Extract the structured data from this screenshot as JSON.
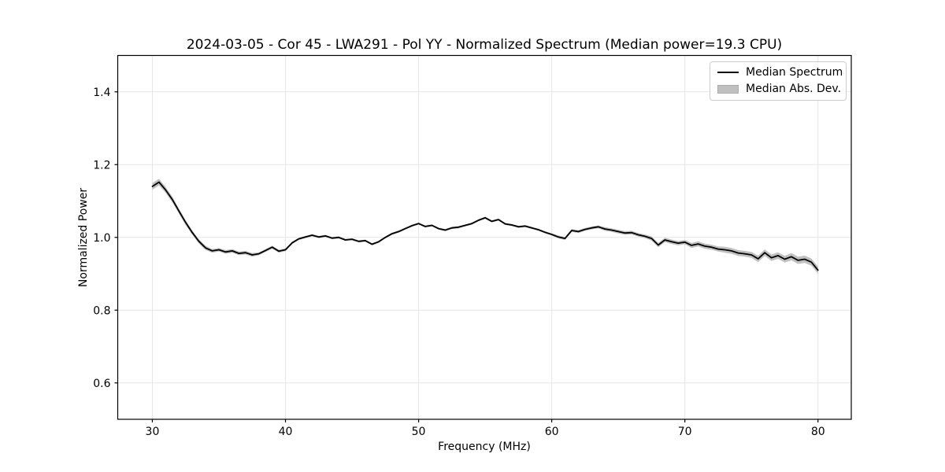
{
  "figure": {
    "title": "2024-03-05 - Cor 45 - LWA291 - Pol YY - Normalized Spectrum (Median power=19.3 CPU)",
    "xlabel": "Frequency (MHz)",
    "ylabel": "Normalized Power"
  },
  "legend": {
    "items": [
      {
        "label": "Median Spectrum",
        "sample": "black-line"
      },
      {
        "label": "Median Abs. Dev.",
        "sample": "gray-patch"
      }
    ]
  },
  "colors": {
    "line": "#000000",
    "band": "#c0c0c0",
    "grid": "#e6e6e6",
    "spine": "#000000",
    "tick": "#000000",
    "legend_border": "#cccccc",
    "background": "#ffffff"
  },
  "chart_data": {
    "type": "line",
    "title": "2024-03-05 - Cor 45 - LWA291 - Pol YY - Normalized Spectrum (Median power=19.3 CPU)",
    "xlabel": "Frequency (MHz)",
    "ylabel": "Normalized Power",
    "xlim": [
      27.4,
      82.5
    ],
    "ylim": [
      0.5,
      1.5
    ],
    "xticks": [
      30,
      40,
      50,
      60,
      70,
      80
    ],
    "xtick_labels": [
      "30",
      "40",
      "50",
      "60",
      "70",
      "80"
    ],
    "yticks": [
      0.6,
      0.8,
      1.0,
      1.2,
      1.4
    ],
    "ytick_labels": [
      "0.6",
      "0.8",
      "1.0",
      "1.2",
      "1.4"
    ],
    "grid": true,
    "legend_position": "upper right",
    "x": [
      30.0,
      30.5,
      31.0,
      31.5,
      32.0,
      32.5,
      33.0,
      33.5,
      34.0,
      34.5,
      35.0,
      35.5,
      36.0,
      36.5,
      37.0,
      37.5,
      38.0,
      38.5,
      39.0,
      39.5,
      40.0,
      40.5,
      41.0,
      41.5,
      42.0,
      42.5,
      43.0,
      43.5,
      44.0,
      44.5,
      45.0,
      45.5,
      46.0,
      46.5,
      47.0,
      47.5,
      48.0,
      48.5,
      49.0,
      49.5,
      50.0,
      50.5,
      51.0,
      51.5,
      52.0,
      52.5,
      53.0,
      53.5,
      54.0,
      54.5,
      55.0,
      55.5,
      56.0,
      56.5,
      57.0,
      57.5,
      58.0,
      58.5,
      59.0,
      59.5,
      60.0,
      60.5,
      61.0,
      61.5,
      62.0,
      62.5,
      63.0,
      63.5,
      64.0,
      64.5,
      65.0,
      65.5,
      66.0,
      66.5,
      67.0,
      67.5,
      68.0,
      68.5,
      69.0,
      69.5,
      70.0,
      70.5,
      71.0,
      71.5,
      72.0,
      72.5,
      73.0,
      73.5,
      74.0,
      74.5,
      75.0,
      75.5,
      76.0,
      76.5,
      77.0,
      77.5,
      78.0,
      78.5,
      79.0,
      79.5,
      80.0
    ],
    "series": [
      {
        "name": "Median Spectrum",
        "type": "line",
        "color": "#000000",
        "y": [
          1.14,
          1.152,
          1.13,
          1.104,
          1.072,
          1.041,
          1.013,
          0.989,
          0.971,
          0.963,
          0.966,
          0.96,
          0.963,
          0.956,
          0.958,
          0.952,
          0.955,
          0.964,
          0.973,
          0.962,
          0.966,
          0.985,
          0.996,
          1.001,
          1.006,
          1.001,
          1.004,
          0.998,
          1.0,
          0.993,
          0.995,
          0.989,
          0.991,
          0.981,
          0.988,
          1.0,
          1.01,
          1.016,
          1.024,
          1.032,
          1.038,
          1.03,
          1.033,
          1.024,
          1.02,
          1.026,
          1.028,
          1.033,
          1.038,
          1.047,
          1.054,
          1.044,
          1.049,
          1.037,
          1.034,
          1.029,
          1.031,
          1.026,
          1.021,
          1.014,
          1.008,
          1.001,
          0.997,
          1.019,
          1.016,
          1.022,
          1.026,
          1.029,
          1.023,
          1.02,
          1.016,
          1.012,
          1.013,
          1.007,
          1.003,
          0.997,
          0.979,
          0.993,
          0.988,
          0.984,
          0.987,
          0.978,
          0.982,
          0.976,
          0.973,
          0.968,
          0.966,
          0.963,
          0.957,
          0.955,
          0.952,
          0.941,
          0.958,
          0.944,
          0.95,
          0.94,
          0.947,
          0.937,
          0.94,
          0.932,
          0.91
        ]
      },
      {
        "name": "Median Abs. Dev.",
        "type": "band",
        "color": "#c0c0c0",
        "mad": [
          0.009,
          0.009,
          0.008,
          0.008,
          0.007,
          0.007,
          0.006,
          0.006,
          0.006,
          0.005,
          0.005,
          0.005,
          0.005,
          0.005,
          0.005,
          0.005,
          0.004,
          0.004,
          0.004,
          0.004,
          0.004,
          0.003,
          0.003,
          0.003,
          0.003,
          0.003,
          0.003,
          0.003,
          0.003,
          0.003,
          0.003,
          0.003,
          0.003,
          0.003,
          0.003,
          0.003,
          0.003,
          0.003,
          0.003,
          0.003,
          0.003,
          0.003,
          0.003,
          0.003,
          0.003,
          0.003,
          0.003,
          0.003,
          0.003,
          0.003,
          0.003,
          0.003,
          0.003,
          0.003,
          0.003,
          0.003,
          0.003,
          0.003,
          0.003,
          0.003,
          0.003,
          0.004,
          0.004,
          0.004,
          0.004,
          0.004,
          0.004,
          0.004,
          0.005,
          0.005,
          0.005,
          0.005,
          0.005,
          0.005,
          0.005,
          0.006,
          0.006,
          0.006,
          0.006,
          0.006,
          0.006,
          0.007,
          0.007,
          0.007,
          0.007,
          0.007,
          0.008,
          0.008,
          0.008,
          0.008,
          0.008,
          0.009,
          0.009,
          0.009,
          0.009,
          0.009,
          0.01,
          0.01,
          0.01,
          0.01,
          0.01
        ]
      }
    ]
  }
}
